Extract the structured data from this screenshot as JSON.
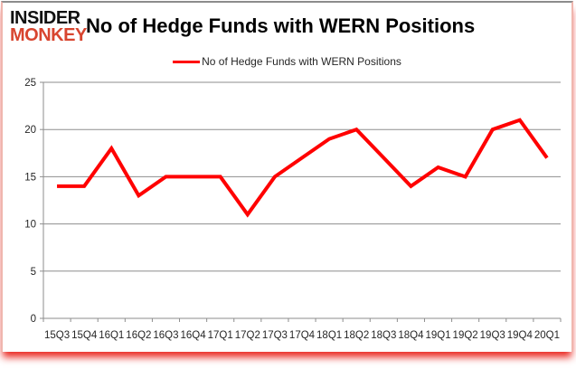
{
  "branding": {
    "logo_line1": "INSIDER",
    "logo_line2": "MONKEY",
    "logo_color1": "#111111",
    "logo_color2": "#d8452f"
  },
  "header": {
    "title": "No of Hedge Funds with WERN Positions"
  },
  "legend": {
    "label": "No of Hedge Funds with WERN Positions",
    "swatch_color": "#ff0000"
  },
  "chart_data": {
    "type": "line",
    "title": "No of Hedge Funds with WERN Positions",
    "categories": [
      "15Q3",
      "15Q4",
      "16Q1",
      "16Q2",
      "16Q3",
      "16Q4",
      "17Q1",
      "17Q2",
      "17Q3",
      "17Q4",
      "18Q1",
      "18Q2",
      "18Q3",
      "18Q4",
      "19Q1",
      "19Q2",
      "19Q3",
      "19Q4",
      "20Q1"
    ],
    "values": [
      14,
      14,
      18,
      13,
      15,
      15,
      15,
      11,
      15,
      17,
      19,
      20,
      17,
      14,
      16,
      15,
      20,
      21,
      17
    ],
    "xlabel": "",
    "ylabel": "",
    "ylim": [
      0,
      25
    ],
    "yticks": [
      0,
      5,
      10,
      15,
      20,
      25
    ],
    "grid": true,
    "legend_position": "top",
    "line_color": "#ff0000",
    "grid_color": "#8e8e8e",
    "label_color": "#262626"
  }
}
